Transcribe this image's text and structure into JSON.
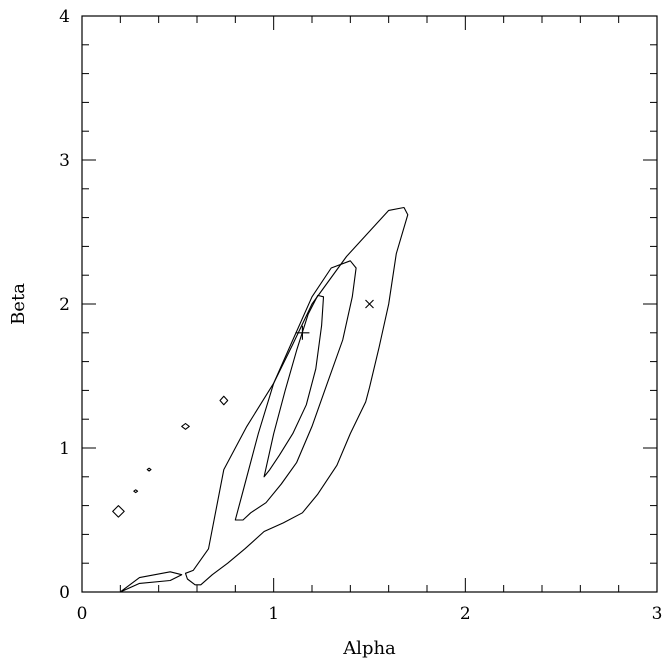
{
  "chart_data": {
    "type": "contour",
    "title": "",
    "xlabel": "Alpha",
    "ylabel": "Beta",
    "xlim": [
      0,
      3
    ],
    "ylim": [
      0,
      4
    ],
    "xticks": [
      0,
      1,
      2,
      3
    ],
    "yticks": [
      0,
      1,
      2,
      3,
      4
    ],
    "xtick_labels": [
      "0",
      "1",
      "2",
      "3"
    ],
    "ytick_labels": [
      "0",
      "1",
      "2",
      "3",
      "4"
    ],
    "grid": false,
    "legend": "none",
    "contours": [
      {
        "level": "outer",
        "x": [
          0.58,
          0.66,
          0.74,
          0.86,
          1.0,
          1.1,
          1.2,
          1.38,
          1.6,
          1.68,
          1.7,
          1.64,
          1.6,
          1.55,
          1.5,
          1.48,
          1.4,
          1.33,
          1.23,
          1.15,
          1.05,
          0.95,
          0.85,
          0.76,
          0.68,
          0.62,
          0.59,
          0.55,
          0.54,
          0.58
        ],
        "y": [
          0.15,
          0.3,
          0.85,
          1.15,
          1.45,
          1.72,
          2.0,
          2.33,
          2.65,
          2.67,
          2.62,
          2.35,
          2.0,
          1.7,
          1.42,
          1.32,
          1.1,
          0.88,
          0.68,
          0.55,
          0.48,
          0.42,
          0.3,
          0.2,
          0.12,
          0.05,
          0.05,
          0.09,
          0.13,
          0.15
        ]
      },
      {
        "level": "middle",
        "x": [
          0.8,
          0.84,
          0.92,
          1.0,
          1.1,
          1.2,
          1.3,
          1.4,
          1.43,
          1.41,
          1.36,
          1.28,
          1.2,
          1.12,
          1.04,
          0.96,
          0.88,
          0.84,
          0.8
        ],
        "y": [
          0.5,
          0.7,
          1.1,
          1.45,
          1.75,
          2.05,
          2.25,
          2.3,
          2.25,
          2.05,
          1.75,
          1.45,
          1.15,
          0.9,
          0.75,
          0.62,
          0.55,
          0.5,
          0.5
        ]
      },
      {
        "level": "inner",
        "x": [
          0.95,
          1.0,
          1.06,
          1.12,
          1.18,
          1.23,
          1.26,
          1.25,
          1.22,
          1.17,
          1.1,
          1.03,
          0.98,
          0.95
        ],
        "y": [
          0.8,
          1.1,
          1.4,
          1.68,
          1.93,
          2.06,
          2.05,
          1.85,
          1.55,
          1.3,
          1.1,
          0.95,
          0.85,
          0.8
        ]
      }
    ],
    "islands": [
      {
        "x": [
          0.19,
          0.22,
          0.19,
          0.16,
          0.19
        ],
        "y": [
          0.52,
          0.56,
          0.6,
          0.56,
          0.52
        ]
      },
      {
        "x": [
          0.28,
          0.29,
          0.28,
          0.27,
          0.28
        ],
        "y": [
          0.69,
          0.7,
          0.71,
          0.7,
          0.69
        ]
      },
      {
        "x": [
          0.35,
          0.36,
          0.35,
          0.34,
          0.35
        ],
        "y": [
          0.84,
          0.85,
          0.86,
          0.85,
          0.84
        ]
      },
      {
        "x": [
          0.54,
          0.56,
          0.54,
          0.52,
          0.54
        ],
        "y": [
          1.13,
          1.15,
          1.17,
          1.15,
          1.13
        ]
      },
      {
        "x": [
          0.74,
          0.76,
          0.74,
          0.72,
          0.74
        ],
        "y": [
          1.3,
          1.33,
          1.36,
          1.33,
          1.3
        ]
      },
      {
        "x": [
          0.2,
          0.3,
          0.46,
          0.52,
          0.46,
          0.3,
          0.2
        ],
        "y": [
          0.0,
          0.06,
          0.08,
          0.12,
          0.14,
          0.1,
          0.0
        ]
      }
    ],
    "markers": [
      {
        "symbol": "plus",
        "x": 1.15,
        "y": 1.8
      },
      {
        "symbol": "cross",
        "x": 1.5,
        "y": 2.0
      }
    ]
  }
}
